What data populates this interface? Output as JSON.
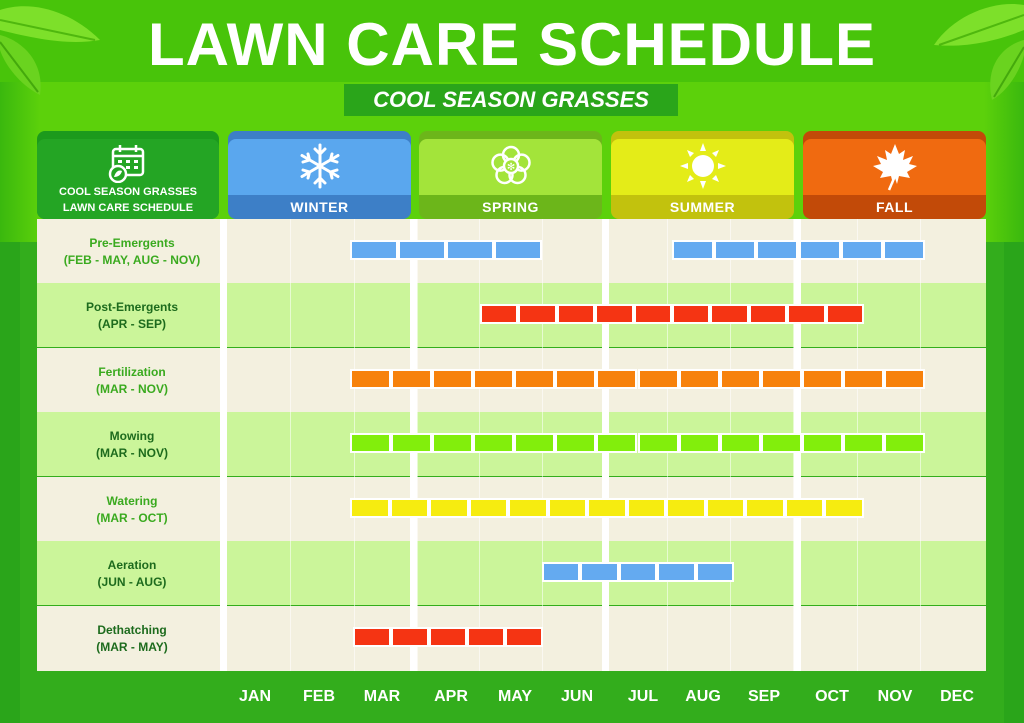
{
  "title": "LAWN CARE SCHEDULE",
  "subtitle": "COOL SEASON GRASSES",
  "legend_card": {
    "line1": "COOL SEASON GRASSES",
    "line2": "LAWN CARE SCHEDULE",
    "icon": "calendar-leaf-icon"
  },
  "seasons": [
    {
      "label": "WINTER",
      "icon": "snowflake-icon",
      "color": "#5aa7ee",
      "dark": "#3d7fc7"
    },
    {
      "label": "SPRING",
      "icon": "flower-icon",
      "color": "#a3e43a",
      "dark": "#6cb61a"
    },
    {
      "label": "SUMMER",
      "icon": "sun-icon",
      "color": "#e4ec18",
      "dark": "#c2c20d"
    },
    {
      "label": "FALL",
      "icon": "maple-leaf-icon",
      "color": "#f06a10",
      "dark": "#c24a08"
    }
  ],
  "months": [
    "JAN",
    "FEB",
    "MAR",
    "APR",
    "MAY",
    "JUN",
    "JUL",
    "AUG",
    "SEP",
    "OCT",
    "NOV",
    "DEC"
  ],
  "tasks": [
    {
      "name": "Pre-Emergents",
      "range": "(FEB - MAY, AUG - NOV)",
      "label_color": "#3aaa1f",
      "bar_color": "#64aaf0"
    },
    {
      "name": "Post-Emergents",
      "range": "(APR - SEP)",
      "label_color": "#1d6b1d",
      "bar_color": "#f53413"
    },
    {
      "name": "Fertilization",
      "range": "(MAR - NOV)",
      "label_color": "#3aaa1f",
      "bar_color": "#f7820c"
    },
    {
      "name": "Mowing",
      "range": "(MAR - NOV)",
      "label_color": "#1d6b1d",
      "bar_color": "#82ee0c"
    },
    {
      "name": "Watering",
      "range": "(MAR - OCT)",
      "label_color": "#3aaa1f",
      "bar_color": "#f6ec10"
    },
    {
      "name": "Aeration",
      "range": "(JUN - AUG)",
      "label_color": "#1d6b1d",
      "bar_color": "#64aaf0"
    },
    {
      "name": "Dethatching",
      "range": "(MAR - MAY)",
      "label_color": "#1d6b1d",
      "bar_color": "#f53413"
    }
  ]
}
